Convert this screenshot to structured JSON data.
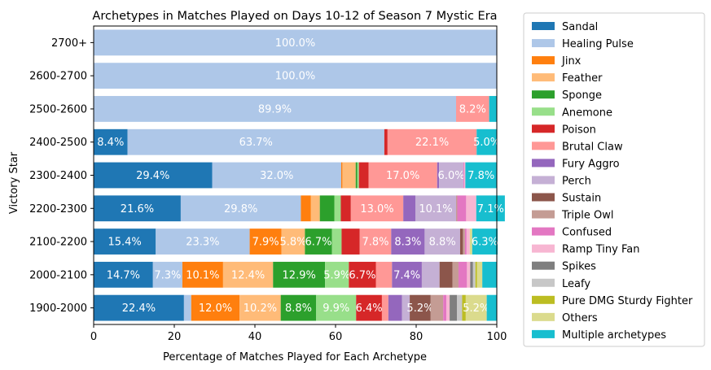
{
  "chart_data": {
    "type": "bar",
    "orientation": "horizontal",
    "stacked": true,
    "title": "Archetypes in Matches Played on Days 10-12 of Season 7 Mystic Era",
    "xlabel": "Percentage of Matches Played for Each Archetype",
    "ylabel": "Victory Star",
    "xlim": [
      0,
      100
    ],
    "xticks": [
      "0",
      "20",
      "40",
      "60",
      "80",
      "100"
    ],
    "grid": false,
    "legend_position": "outside-right",
    "categories": [
      "2700+",
      "2600-2700",
      "2500-2600",
      "2400-2500",
      "2300-2400",
      "2200-2300",
      "2100-2200",
      "2000-2100",
      "1900-2000"
    ],
    "series": [
      {
        "name": "Sandal",
        "color": "#1f77b4",
        "values": [
          0,
          0,
          0,
          8.4,
          29.4,
          21.6,
          15.4,
          14.7,
          22.4
        ]
      },
      {
        "name": "Healing Pulse",
        "color": "#aec7e8",
        "values": [
          100.0,
          100.0,
          89.9,
          63.7,
          32.0,
          29.8,
          23.3,
          7.3,
          1.8
        ]
      },
      {
        "name": "Jinx",
        "color": "#ff7f0e",
        "values": [
          0,
          0,
          0,
          0,
          0.3,
          2.5,
          7.9,
          10.1,
          12.0
        ]
      },
      {
        "name": "Feather",
        "color": "#ffbb78",
        "values": [
          0,
          0,
          0,
          0,
          3.3,
          2.2,
          5.8,
          12.4,
          10.2
        ]
      },
      {
        "name": "Sponge",
        "color": "#2ca02c",
        "values": [
          0,
          0,
          0,
          0,
          0.4,
          3.6,
          6.7,
          12.9,
          8.8
        ]
      },
      {
        "name": "Anemone",
        "color": "#98df8a",
        "values": [
          0,
          0,
          0,
          0,
          0.4,
          1.6,
          2.4,
          5.9,
          9.9
        ]
      },
      {
        "name": "Poison",
        "color": "#d62728",
        "values": [
          0,
          0,
          0,
          0.8,
          2.4,
          2.5,
          4.5,
          6.7,
          6.4
        ]
      },
      {
        "name": "Brutal Claw",
        "color": "#ff9896",
        "values": [
          0,
          0,
          8.2,
          22.1,
          17.0,
          13.0,
          7.8,
          4.0,
          1.6
        ]
      },
      {
        "name": "Fury Aggro",
        "color": "#9467bd",
        "values": [
          0,
          0,
          0,
          0,
          0.5,
          3.0,
          8.3,
          7.4,
          3.4
        ]
      },
      {
        "name": "Perch",
        "color": "#c5b0d5",
        "values": [
          0,
          0,
          0,
          0,
          6.0,
          10.1,
          8.8,
          4.4,
          1.9
        ]
      },
      {
        "name": "Sustain",
        "color": "#8c564b",
        "values": [
          0,
          0,
          0,
          0,
          0,
          0,
          0.7,
          3.2,
          5.2
        ]
      },
      {
        "name": "Triple Owl",
        "color": "#c49c94",
        "values": [
          0,
          0,
          0,
          0,
          0,
          0.3,
          0.5,
          1.5,
          3.1
        ]
      },
      {
        "name": "Confused",
        "color": "#e377c2",
        "values": [
          0,
          0,
          0,
          0,
          0.2,
          2.2,
          0.4,
          2.1,
          0.8
        ]
      },
      {
        "name": "Ramp Tiny Fan",
        "color": "#f7b6d2",
        "values": [
          0,
          0,
          0,
          0,
          0.3,
          2.5,
          0.8,
          0.8,
          0.8
        ]
      },
      {
        "name": "Spikes",
        "color": "#7f7f7f",
        "values": [
          0,
          0,
          0,
          0,
          0,
          0,
          0,
          0.7,
          1.8
        ]
      },
      {
        "name": "Leafy",
        "color": "#c7c7c7",
        "values": [
          0,
          0,
          0,
          0,
          0,
          0,
          0,
          0.6,
          1.3
        ]
      },
      {
        "name": "Pure DMG Sturdy Fighter",
        "color": "#bcbd22",
        "values": [
          0,
          0,
          0,
          0,
          0,
          0,
          0,
          0.4,
          0.9
        ]
      },
      {
        "name": "Others",
        "color": "#dbdb8d",
        "values": [
          0,
          0,
          0,
          0,
          0,
          0,
          0.6,
          1.3,
          5.2
        ]
      },
      {
        "name": "Multiple archetypes",
        "color": "#17becf",
        "values": [
          0,
          0,
          1.9,
          5.0,
          7.8,
          7.1,
          6.3,
          3.6,
          2.5
        ]
      }
    ]
  }
}
